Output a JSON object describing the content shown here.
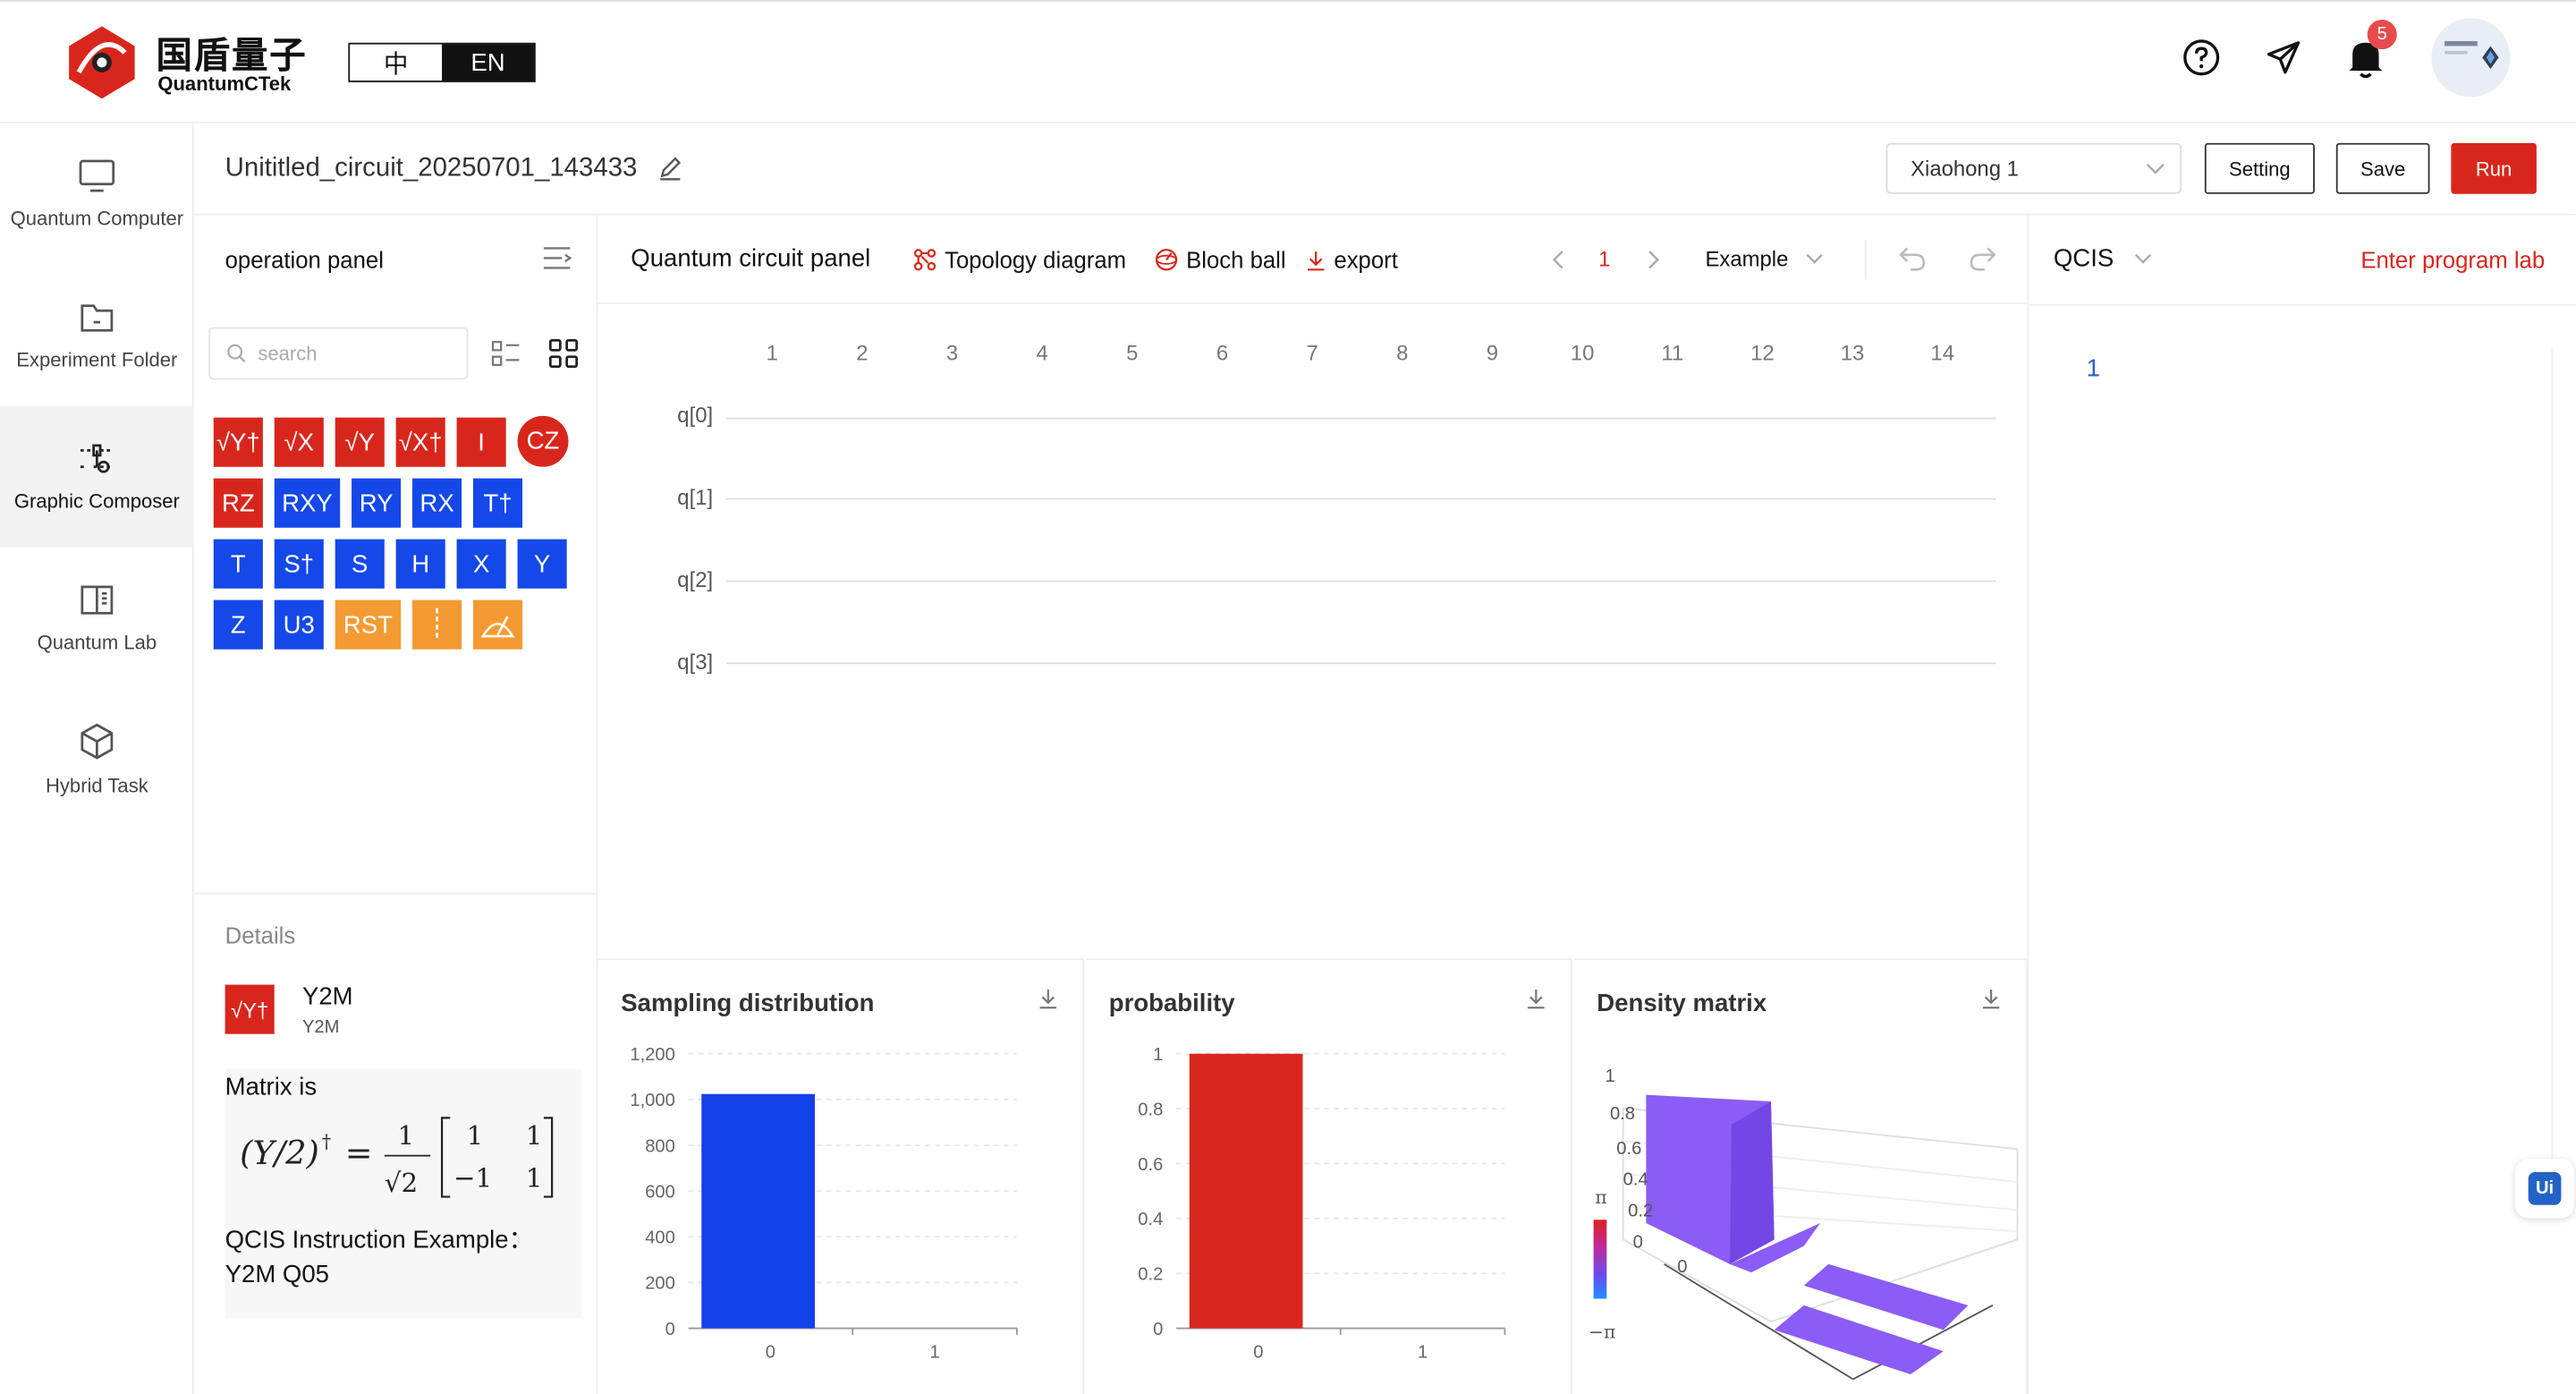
{
  "header": {
    "logo_cn": "国盾量子",
    "logo_en": "QuantumCTek",
    "lang_cn": "中",
    "lang_en": "EN",
    "notification_count": "5"
  },
  "nav": {
    "items": [
      {
        "label": "Quantum Computer"
      },
      {
        "label": "Experiment Folder"
      },
      {
        "label": "Graphic Composer"
      },
      {
        "label": "Quantum Lab"
      },
      {
        "label": "Hybrid Task"
      }
    ]
  },
  "toolbar": {
    "circuit_name": "Unititled_circuit_20250701_143433",
    "device_select": "Xiaohong 1",
    "setting_label": "Setting",
    "save_label": "Save",
    "run_label": "Run"
  },
  "operation_panel": {
    "title": "operation panel",
    "search_placeholder": "search",
    "gates": [
      {
        "label": "√Y†",
        "color": "red"
      },
      {
        "label": "√X",
        "color": "red"
      },
      {
        "label": "√Y",
        "color": "red"
      },
      {
        "label": "√X†",
        "color": "red"
      },
      {
        "label": "I",
        "color": "red"
      },
      {
        "label": "CZ",
        "color": "red"
      },
      {
        "label": "RZ",
        "color": "red"
      },
      {
        "label": "RXY",
        "color": "blue"
      },
      {
        "label": "RY",
        "color": "blue"
      },
      {
        "label": "RX",
        "color": "blue"
      },
      {
        "label": "T†",
        "color": "blue"
      },
      {
        "label": "T",
        "color": "blue"
      },
      {
        "label": "S†",
        "color": "blue"
      },
      {
        "label": "S",
        "color": "blue"
      },
      {
        "label": "H",
        "color": "blue"
      },
      {
        "label": "X",
        "color": "blue"
      },
      {
        "label": "Y",
        "color": "blue"
      },
      {
        "label": "Z",
        "color": "blue"
      },
      {
        "label": "U3",
        "color": "blue"
      },
      {
        "label": "RST",
        "color": "orange"
      },
      {
        "label": "barrier",
        "color": "orange"
      },
      {
        "label": "measure",
        "color": "orange"
      }
    ]
  },
  "details": {
    "label": "Details",
    "gate_name": "Y2M",
    "gate_sub": "Y2M",
    "matrix_label": "Matrix is",
    "qcis_example_label": "QCIS Instruction Example：",
    "qcis_example": "Y2M Q05"
  },
  "circuit_panel": {
    "title": "Quantum circuit panel",
    "topology": "Topology diagram",
    "bloch": "Bloch ball",
    "export": "export",
    "page": "1",
    "example": "Example",
    "columns": [
      "1",
      "2",
      "3",
      "4",
      "5",
      "6",
      "7",
      "8",
      "9",
      "10",
      "11",
      "12",
      "13",
      "14"
    ],
    "qubits": [
      "q[0]",
      "q[1]",
      "q[2]",
      "q[3]"
    ]
  },
  "qcis_panel": {
    "title": "QCIS",
    "enter_lab": "Enter program lab",
    "line_number": "1"
  },
  "charts": {
    "sampling_title": "Sampling distribution",
    "probability_title": "probability",
    "density_title": "Density matrix",
    "density_colorbar_top": "π",
    "density_colorbar_bottom": "−π"
  },
  "chart_data": [
    {
      "type": "bar",
      "title": "Sampling distribution",
      "categories": [
        "0",
        "1"
      ],
      "values": [
        1024,
        0
      ],
      "ylim": [
        0,
        1200
      ],
      "yticks": [
        "0",
        "200",
        "400",
        "600",
        "800",
        "1,000",
        "1,200"
      ],
      "color": "#1341e8"
    },
    {
      "type": "bar",
      "title": "probability",
      "categories": [
        "0",
        "1"
      ],
      "values": [
        1,
        0
      ],
      "ylim": [
        0,
        1
      ],
      "yticks": [
        "0",
        "0.2",
        "0.4",
        "0.6",
        "0.8",
        "1"
      ],
      "color": "#d9261c"
    }
  ],
  "colors": {
    "brand_red": "#d9261c",
    "gate_blue": "#1548e8",
    "gate_orange": "#f39b32",
    "density_purple": "#8b5cf6"
  }
}
